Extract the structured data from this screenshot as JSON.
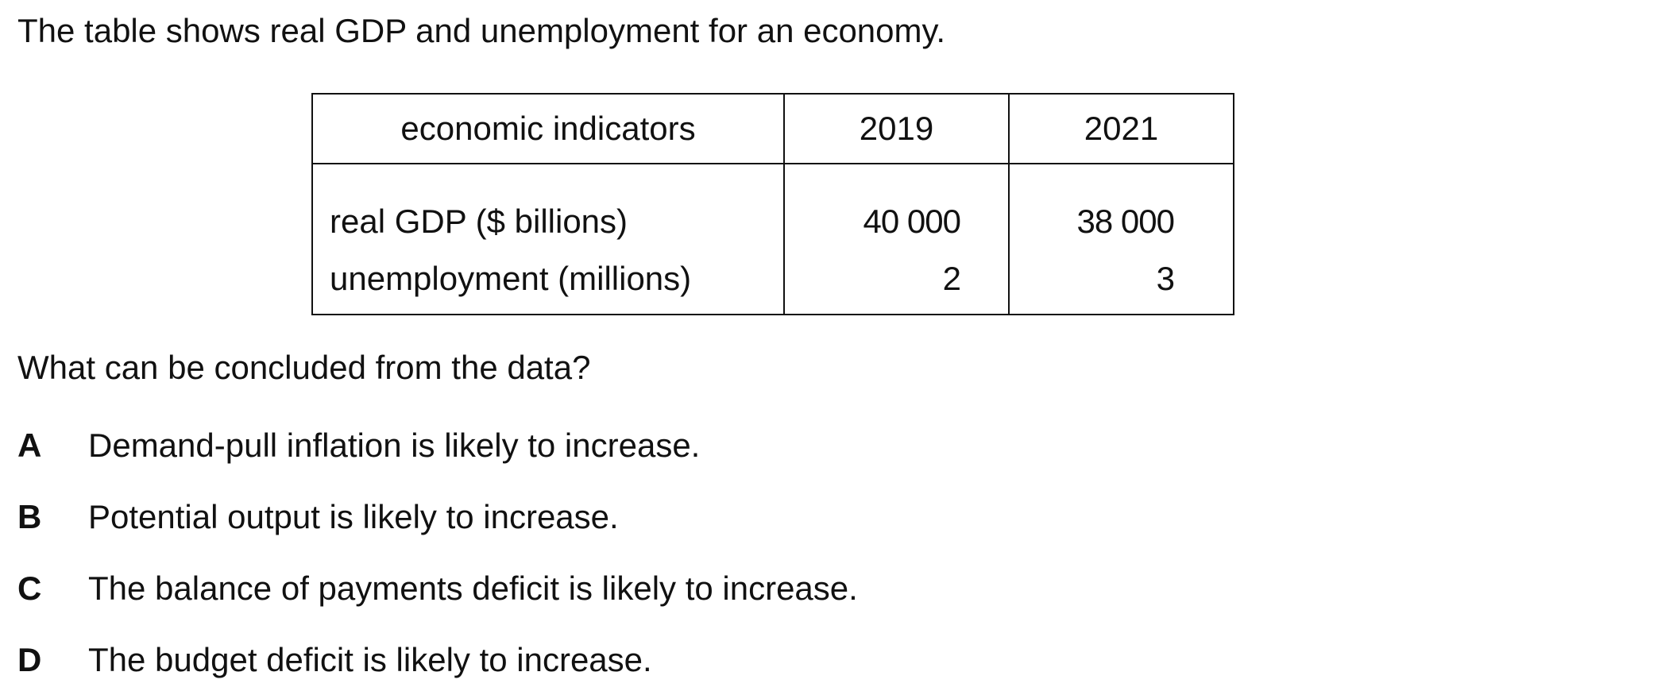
{
  "intro": "The table shows real GDP and unemployment for an economy.",
  "table": {
    "headers": [
      "economic indicators",
      "2019",
      "2021"
    ],
    "rows": [
      {
        "label": "real GDP ($ billions)",
        "y2019": "40 000",
        "y2021": "38 000"
      },
      {
        "label": "unemployment (millions)",
        "y2019": "2",
        "y2021": "3"
      }
    ]
  },
  "question": "What can be concluded from the data?",
  "options": [
    {
      "letter": "A",
      "text": "Demand-pull inflation is likely to increase."
    },
    {
      "letter": "B",
      "text": "Potential output is likely to increase."
    },
    {
      "letter": "C",
      "text": "The balance of payments deficit is likely to increase."
    },
    {
      "letter": "D",
      "text": "The budget deficit is likely to increase."
    }
  ]
}
